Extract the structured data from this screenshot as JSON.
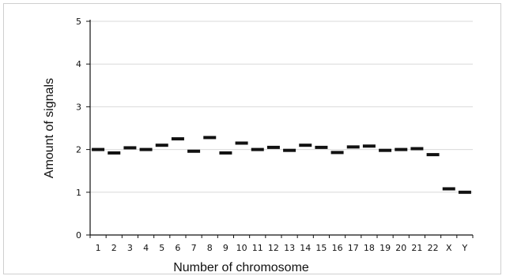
{
  "chart_data": {
    "type": "scatter",
    "marker": "horizontal-bar",
    "xlabel": "Number of chromosome",
    "ylabel": "Amount of signals",
    "categories": [
      "1",
      "2",
      "3",
      "4",
      "5",
      "6",
      "7",
      "8",
      "9",
      "10",
      "11",
      "12",
      "13",
      "14",
      "15",
      "16",
      "17",
      "18",
      "19",
      "20",
      "21",
      "22",
      "X",
      "Y"
    ],
    "values": [
      2.0,
      1.92,
      2.04,
      2.0,
      2.1,
      2.25,
      1.96,
      2.28,
      1.92,
      2.15,
      2.0,
      2.05,
      1.98,
      2.1,
      2.05,
      1.93,
      2.06,
      2.08,
      1.98,
      2.0,
      2.02,
      1.88,
      1.08,
      1.0
    ],
    "ylim": [
      0,
      5
    ],
    "yticks": [
      0,
      1,
      2,
      3,
      4,
      5
    ],
    "grid": true,
    "legend": "none",
    "colors": {
      "marker": "#111111",
      "grid": "#d9d9d9",
      "axis": "#111111"
    }
  }
}
